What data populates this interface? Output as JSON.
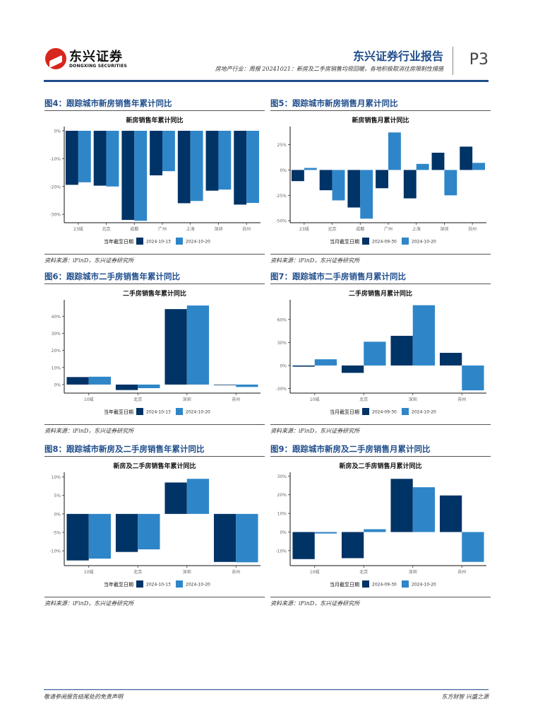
{
  "header": {
    "logo_cn": "东兴证券",
    "logo_en": "DONGXING SECURITIES",
    "report_title": "东兴证券行业报告",
    "report_subtitle": "房地产行业：周报 20241021：新房及二手房销售均现回暖，各地积极取消往房限制性措施",
    "page": "P3"
  },
  "colors": {
    "series1": "#003366",
    "series2": "#2e86c8",
    "accent": "#1f4e8c"
  },
  "figures": [
    {
      "label": "图4：跟踪城市新房销售年累计同比",
      "source": "资料来源：iFinD，东兴证券研究所"
    },
    {
      "label": "图5：跟踪城市新房销售月累计同比",
      "source": "资料来源：iFinD，东兴证券研究所"
    },
    {
      "label": "图6：跟踪城市二手房销售年累计同比",
      "source": "资料来源：iFinD，东兴证券研究所"
    },
    {
      "label": "图7：跟踪城市二手房销售月累计同比",
      "source": "资料来源：iFinD，东兴证券研究所"
    },
    {
      "label": "图8：跟踪城市新房及二手房销售年累计同比",
      "source": "资料来源：iFinD，东兴证券研究所"
    },
    {
      "label": "图9：跟踪城市新房及二手房销售月累计同比",
      "source": "资料来源：iFinD，东兴证券研究所"
    }
  ],
  "chart_data": [
    {
      "type": "bar",
      "title": "新房销售年累计同比",
      "categories": [
        "23城",
        "北京",
        "成都",
        "广州",
        "上海",
        "深圳",
        "苏州"
      ],
      "legend_title": "当年截至日期",
      "series": [
        {
          "name": "2024-10-13",
          "values": [
            -19.4,
            -19.7,
            -32.0,
            -16.0,
            -26.0,
            -21.5,
            -26.5
          ]
        },
        {
          "name": "2024-10-20",
          "values": [
            -18.5,
            -20.0,
            -32.3,
            -14.5,
            -25.2,
            -21.1,
            -25.9
          ]
        }
      ],
      "yticks": [
        0,
        -10,
        -20,
        -30
      ],
      "ytick_labels": [
        "0%",
        "-10%",
        "-20%",
        "-30%"
      ],
      "ylim": [
        -33,
        0.5
      ],
      "legend": "bottom"
    },
    {
      "type": "bar",
      "title": "新房销售月累计同比",
      "categories": [
        "23城",
        "北京",
        "成都",
        "广州",
        "上海",
        "深圳",
        "苏州"
      ],
      "legend_title": "当月截至日期",
      "series": [
        {
          "name": "2024-09-30",
          "values": [
            -11,
            -20,
            -37,
            -18,
            -28,
            17,
            23
          ]
        },
        {
          "name": "2024-10-20",
          "values": [
            2,
            -30,
            -48,
            37,
            6,
            -25,
            7
          ]
        }
      ],
      "yticks": [
        25,
        0,
        -25,
        -50
      ],
      "ytick_labels": [
        "25%",
        "0%",
        "-25%",
        "-50%"
      ],
      "ylim": [
        -52,
        40
      ],
      "legend": "bottom"
    },
    {
      "type": "bar",
      "title": "二手房销售年累计同比",
      "categories": [
        "10城",
        "北京",
        "深圳",
        "苏州"
      ],
      "legend_title": "当年截至日期",
      "series": [
        {
          "name": "2024-10-13",
          "values": [
            4.4,
            -3.2,
            44.2,
            -0.2
          ]
        },
        {
          "name": "2024-10-20",
          "values": [
            4.6,
            -2.1,
            46.3,
            -1.4
          ]
        }
      ],
      "yticks": [
        40,
        30,
        20,
        10,
        0
      ],
      "ytick_labels": [
        "40%",
        "30%",
        "20%",
        "10%",
        "0%"
      ],
      "ylim": [
        -5,
        48
      ],
      "legend": "bottom"
    },
    {
      "type": "bar",
      "title": "二手房销售月累计同比",
      "categories": [
        "10城",
        "北京",
        "深圳",
        "苏州"
      ],
      "legend_title": "当月截至日期",
      "series": [
        {
          "name": "2024-09-30",
          "values": [
            -1.5,
            -9.6,
            38.7,
            16.5
          ]
        },
        {
          "name": "2024-10-20",
          "values": [
            8.1,
            31.0,
            78.6,
            -32.4
          ]
        }
      ],
      "yticks": [
        60,
        30,
        0,
        -30
      ],
      "ytick_labels": [
        "60%",
        "30%",
        "0%",
        "-30%"
      ],
      "ylim": [
        -36,
        82
      ],
      "legend": "bottom"
    },
    {
      "type": "bar",
      "title": "新房及二手房销售年累计同比",
      "categories": [
        "10城",
        "北京",
        "深圳",
        "苏州"
      ],
      "legend_title": "当年截至日期",
      "series": [
        {
          "name": "2024-10-13",
          "values": [
            -12.6,
            -10.3,
            8.5,
            -13.0
          ]
        },
        {
          "name": "2024-10-20",
          "values": [
            -12.1,
            -9.6,
            9.5,
            -13.1
          ]
        }
      ],
      "yticks": [
        10,
        5,
        0,
        -5,
        -10
      ],
      "ytick_labels": [
        "10%",
        "5%",
        "0%",
        "-5%",
        "-10%"
      ],
      "ylim": [
        -14,
        10.5
      ],
      "legend": "bottom"
    },
    {
      "type": "bar",
      "title": "新房及二手房销售月累计同比",
      "categories": [
        "10城",
        "北京",
        "深圳",
        "苏州"
      ],
      "legend_title": "当月截至日期",
      "series": [
        {
          "name": "2024-09-30",
          "values": [
            -14.5,
            -14.0,
            28.5,
            19.6
          ]
        },
        {
          "name": "2024-10-20",
          "values": [
            -0.8,
            1.5,
            24.0,
            -16.0
          ]
        }
      ],
      "yticks": [
        30,
        20,
        10,
        0,
        -10
      ],
      "ytick_labels": [
        "30%",
        "20%",
        "10%",
        "0%",
        "-10%"
      ],
      "ylim": [
        -18,
        30.5
      ],
      "legend": "bottom"
    }
  ],
  "footer": {
    "disclaimer": "敬请参阅报告结尾处的免责声明",
    "slogan": "东方财智 兴盛之源"
  }
}
